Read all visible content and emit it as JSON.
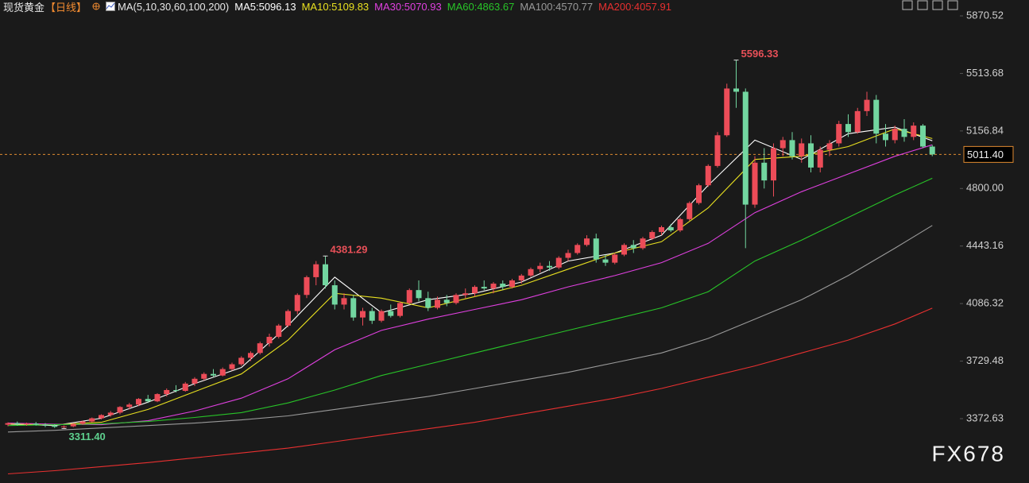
{
  "chart_data": {
    "type": "candlestick",
    "title": "现货黄金",
    "period": "【日线】",
    "indicator": "MA(5,10,30,60,100,200)",
    "watermark": "FX678",
    "ylim": [
      3013,
      5969
    ],
    "yticks": [
      5870.52,
      5513.68,
      5156.84,
      {
        "value": 4800,
        "label": "4800.00"
      },
      4443.16,
      4086.32,
      3729.48,
      3372.63
    ],
    "last_price": {
      "value": 5011.4,
      "label": "5011.40"
    },
    "up_color": "#ec4c58",
    "down_color": "#72d6a0",
    "candles": [
      [
        3335,
        3350,
        3325,
        3345
      ],
      [
        3345,
        3355,
        3330,
        3338
      ],
      [
        3338,
        3348,
        3328,
        3342
      ],
      [
        3342,
        3352,
        3330,
        3335
      ],
      [
        3335,
        3345,
        3320,
        3330
      ],
      [
        3330,
        3338,
        3315,
        3322
      ],
      [
        3322,
        3330,
        3311.4,
        3325
      ],
      [
        3325,
        3345,
        3320,
        3340
      ],
      [
        3340,
        3360,
        3335,
        3355
      ],
      [
        3355,
        3380,
        3350,
        3375
      ],
      [
        3375,
        3400,
        3368,
        3395
      ],
      [
        3395,
        3420,
        3385,
        3410
      ],
      [
        3410,
        3450,
        3400,
        3445
      ],
      [
        3445,
        3470,
        3430,
        3460
      ],
      [
        3460,
        3500,
        3450,
        3495
      ],
      [
        3495,
        3520,
        3470,
        3480
      ],
      [
        3480,
        3530,
        3475,
        3525
      ],
      [
        3525,
        3560,
        3510,
        3550
      ],
      [
        3550,
        3580,
        3535,
        3545
      ],
      [
        3545,
        3600,
        3540,
        3590
      ],
      [
        3590,
        3630,
        3575,
        3620
      ],
      [
        3620,
        3660,
        3610,
        3650
      ],
      [
        3650,
        3680,
        3630,
        3640
      ],
      [
        3640,
        3690,
        3635,
        3680
      ],
      [
        3680,
        3720,
        3670,
        3710
      ],
      [
        3710,
        3760,
        3700,
        3750
      ],
      [
        3750,
        3790,
        3730,
        3780
      ],
      [
        3780,
        3850,
        3770,
        3840
      ],
      [
        3840,
        3900,
        3820,
        3880
      ],
      [
        3880,
        3960,
        3870,
        3950
      ],
      [
        3950,
        4050,
        3940,
        4040
      ],
      [
        4040,
        4150,
        4020,
        4140
      ],
      [
        4140,
        4260,
        4120,
        4250
      ],
      [
        4250,
        4350,
        4200,
        4330
      ],
      [
        4330,
        4381.29,
        4180,
        4200
      ],
      [
        4200,
        4230,
        4050,
        4080
      ],
      [
        4080,
        4150,
        4050,
        4120
      ],
      [
        4120,
        4140,
        3980,
        4000
      ],
      [
        4000,
        4060,
        3950,
        4040
      ],
      [
        4040,
        4060,
        3960,
        3980
      ],
      [
        3980,
        4050,
        3970,
        4040
      ],
      [
        4040,
        4080,
        4000,
        4010
      ],
      [
        4010,
        4100,
        4000,
        4090
      ],
      [
        4090,
        4180,
        4080,
        4170
      ],
      [
        4170,
        4230,
        4100,
        4120
      ],
      [
        4120,
        4160,
        4040,
        4060
      ],
      [
        4060,
        4130,
        4050,
        4110
      ],
      [
        4110,
        4140,
        4070,
        4090
      ],
      [
        4090,
        4150,
        4080,
        4140
      ],
      [
        4140,
        4180,
        4120,
        4150
      ],
      [
        4150,
        4200,
        4130,
        4190
      ],
      [
        4190,
        4230,
        4170,
        4180
      ],
      [
        4180,
        4220,
        4150,
        4210
      ],
      [
        4210,
        4230,
        4170,
        4190
      ],
      [
        4190,
        4240,
        4180,
        4230
      ],
      [
        4230,
        4270,
        4210,
        4260
      ],
      [
        4260,
        4310,
        4250,
        4300
      ],
      [
        4300,
        4340,
        4280,
        4320
      ],
      [
        4320,
        4350,
        4290,
        4310
      ],
      [
        4310,
        4380,
        4300,
        4370
      ],
      [
        4370,
        4420,
        4350,
        4400
      ],
      [
        4400,
        4460,
        4390,
        4450
      ],
      [
        4450,
        4510,
        4440,
        4490
      ],
      [
        4490,
        4520,
        4340,
        4360
      ],
      [
        4360,
        4390,
        4320,
        4340
      ],
      [
        4340,
        4400,
        4330,
        4390
      ],
      [
        4390,
        4460,
        4380,
        4450
      ],
      [
        4450,
        4480,
        4400,
        4430
      ],
      [
        4430,
        4500,
        4420,
        4490
      ],
      [
        4490,
        4540,
        4480,
        4530
      ],
      [
        4530,
        4570,
        4510,
        4560
      ],
      [
        4560,
        4580,
        4530,
        4540
      ],
      [
        4540,
        4620,
        4530,
        4610
      ],
      [
        4610,
        4720,
        4600,
        4710
      ],
      [
        4710,
        4830,
        4700,
        4820
      ],
      [
        4820,
        4950,
        4810,
        4940
      ],
      [
        4940,
        5150,
        4930,
        5130
      ],
      [
        5130,
        5450,
        5120,
        5420
      ],
      [
        5420,
        5596.33,
        5300,
        5400
      ],
      [
        5400,
        5420,
        4430,
        4700
      ],
      [
        4700,
        5000,
        4680,
        4960
      ],
      [
        4960,
        5050,
        4800,
        4850
      ],
      [
        4850,
        5080,
        4750,
        5050
      ],
      [
        5050,
        5120,
        5000,
        5100
      ],
      [
        5100,
        5150,
        4980,
        5000
      ],
      [
        5000,
        5110,
        4960,
        5080
      ],
      [
        5080,
        5130,
        4900,
        4930
      ],
      [
        4930,
        5060,
        4900,
        5040
      ],
      [
        5040,
        5100,
        5000,
        5080
      ],
      [
        5080,
        5220,
        5060,
        5200
      ],
      [
        5200,
        5260,
        5120,
        5150
      ],
      [
        5150,
        5300,
        5140,
        5280
      ],
      [
        5280,
        5400,
        5250,
        5350
      ],
      [
        5350,
        5380,
        5080,
        5140
      ],
      [
        5140,
        5200,
        5060,
        5100
      ],
      [
        5100,
        5190,
        5080,
        5170
      ],
      [
        5170,
        5230,
        5090,
        5120
      ],
      [
        5120,
        5210,
        5100,
        5190
      ],
      [
        5190,
        5200,
        5050,
        5060
      ],
      [
        5060,
        5070,
        5000,
        5011.4
      ]
    ],
    "ma_x": [
      0,
      5,
      10,
      15,
      20,
      25,
      30,
      35,
      40,
      45,
      50,
      55,
      60,
      65,
      70,
      75,
      80,
      85,
      90,
      95,
      99
    ],
    "series": [
      {
        "name": "MA5:5096.13",
        "color": "#ffffff",
        "values": [
          3338,
          3330,
          3375,
          3475,
          3590,
          3690,
          3950,
          4250,
          4030,
          4110,
          4150,
          4220,
          4350,
          4400,
          4510,
          4820,
          5100,
          4980,
          5140,
          5180,
          5096.13
        ]
      },
      {
        "name": "MA10:5109.83",
        "color": "#e8e020",
        "values": [
          3340,
          3335,
          3350,
          3430,
          3540,
          3650,
          3860,
          4150,
          4120,
          4060,
          4130,
          4200,
          4300,
          4400,
          4470,
          4680,
          4980,
          5000,
          5060,
          5170,
          5109.83
        ]
      },
      {
        "name": "MA30:5070.93",
        "color": "#e040e0",
        "values": [
          3345,
          3338,
          3335,
          3360,
          3420,
          3500,
          3620,
          3800,
          3920,
          3990,
          4050,
          4110,
          4190,
          4260,
          4340,
          4460,
          4650,
          4780,
          4890,
          5000,
          5070.93
        ]
      },
      {
        "name": "MA60:4863.67",
        "color": "#28c428",
        "values": [
          3330,
          3335,
          3340,
          3355,
          3380,
          3410,
          3470,
          3550,
          3640,
          3710,
          3780,
          3850,
          3920,
          3990,
          4060,
          4160,
          4350,
          4480,
          4620,
          4760,
          4863.67
        ]
      },
      {
        "name": "MA100:4570.77",
        "color": "#9a9a9a",
        "values": [
          3290,
          3300,
          3315,
          3330,
          3345,
          3365,
          3390,
          3430,
          3470,
          3510,
          3560,
          3610,
          3660,
          3720,
          3780,
          3870,
          3990,
          4110,
          4260,
          4430,
          4570.77
        ]
      },
      {
        "name": "MA200:4057.91",
        "color": "#e83030",
        "values": [
          3030,
          3050,
          3075,
          3100,
          3130,
          3160,
          3190,
          3230,
          3270,
          3310,
          3350,
          3400,
          3450,
          3500,
          3560,
          3630,
          3700,
          3780,
          3860,
          3960,
          4057.91
        ]
      }
    ],
    "annotations": [
      {
        "value": 5596.33,
        "label": "5596.33",
        "candle": 78,
        "at": "high",
        "color": "#e85058"
      },
      {
        "value": 4381.29,
        "label": "4381.29",
        "candle": 34,
        "at": "high",
        "color": "#e85058"
      },
      {
        "value": 3311.4,
        "label": "3311.40",
        "candle": 6,
        "at": "low",
        "color": "#5ed08e"
      }
    ]
  }
}
